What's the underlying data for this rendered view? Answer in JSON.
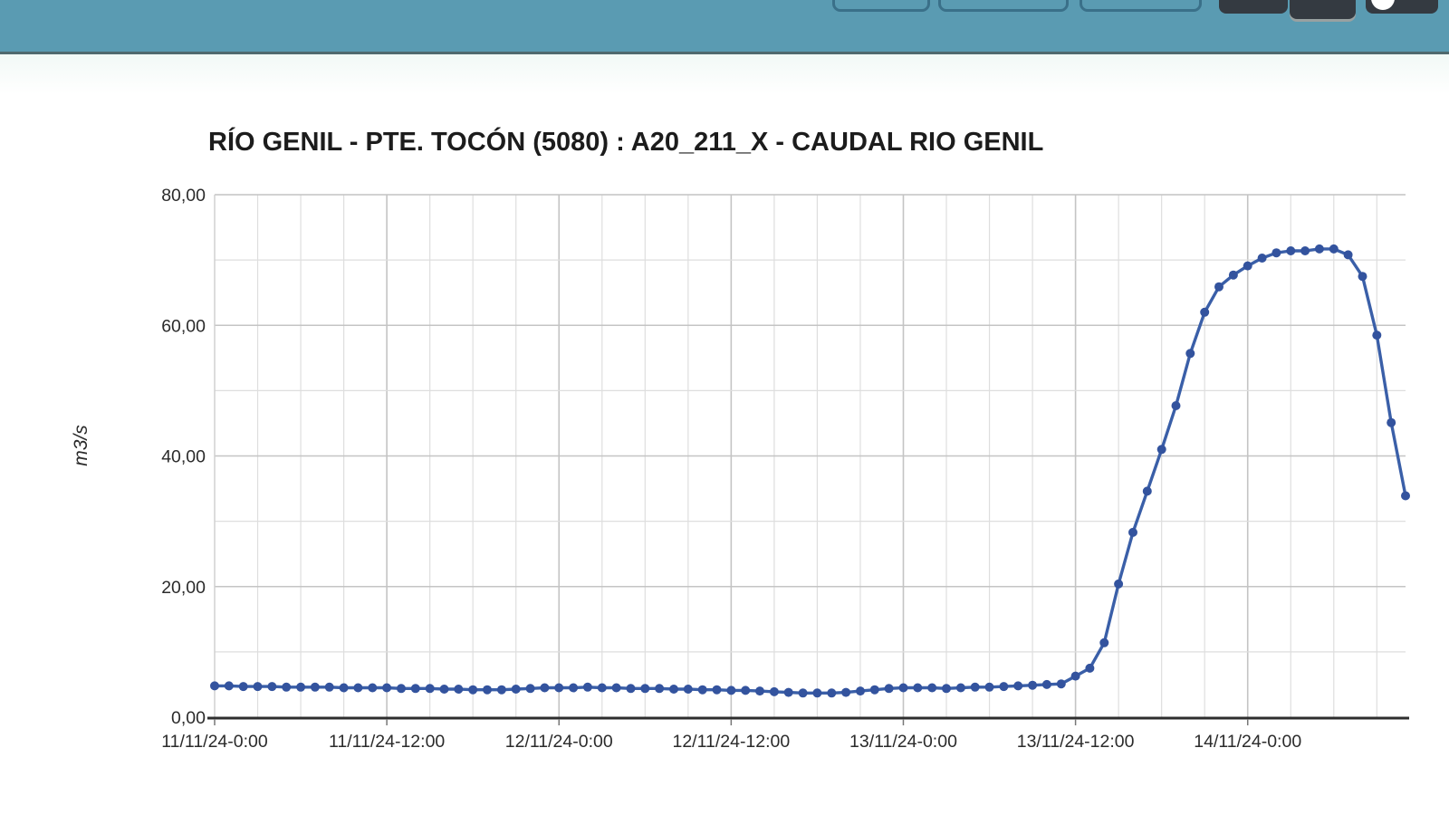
{
  "header": {
    "colors": {
      "bar_background": "#5a9bb2",
      "bar_border": "#50696e",
      "outline_button_border": "#3a7089",
      "dark_button_fill": "#343a41",
      "circle_icon_fill": "#ffffff"
    }
  },
  "chart_data": {
    "type": "line",
    "title": "RÍO GENIL - PTE. TOCÓN (5080) : A20_211_X - CAUDAL RIO GENIL",
    "xlabel": "",
    "ylabel": "m3/s",
    "ylim": [
      0,
      80
    ],
    "y_ticks": [
      "0,00",
      "20,00",
      "40,00",
      "60,00",
      "80,00"
    ],
    "x_tick_labels": [
      "11/11/24-0:00",
      "11/11/24-12:00",
      "12/11/24-0:00",
      "12/11/24-12:00",
      "13/11/24-0:00",
      "13/11/24-12:00",
      "14/11/24-0:00"
    ],
    "x_tick_hours": [
      0,
      12,
      24,
      36,
      48,
      60,
      72
    ],
    "minor_grid_step_hours": 3,
    "total_hours": 83,
    "grid": "on",
    "legend": "none",
    "colors": {
      "line": "#3a5fa8",
      "marker": "#33539e",
      "grid_minor": "#dedede",
      "grid_major": "#c4c4c4",
      "axis": "#2e2e2e",
      "tick_text": "#2b2b2b"
    },
    "series": [
      {
        "name": "CAUDAL RIO GENIL",
        "timestamps": [
          "11/11/24-0:00",
          "11/11/24-1:00",
          "11/11/24-2:00",
          "11/11/24-3:00",
          "11/11/24-4:00",
          "11/11/24-5:00",
          "11/11/24-6:00",
          "11/11/24-7:00",
          "11/11/24-8:00",
          "11/11/24-9:00",
          "11/11/24-10:00",
          "11/11/24-11:00",
          "11/11/24-12:00",
          "11/11/24-13:00",
          "11/11/24-14:00",
          "11/11/24-15:00",
          "11/11/24-16:00",
          "11/11/24-17:00",
          "11/11/24-18:00",
          "11/11/24-19:00",
          "11/11/24-20:00",
          "11/11/24-21:00",
          "11/11/24-22:00",
          "11/11/24-23:00",
          "12/11/24-0:00",
          "12/11/24-1:00",
          "12/11/24-2:00",
          "12/11/24-3:00",
          "12/11/24-4:00",
          "12/11/24-5:00",
          "12/11/24-6:00",
          "12/11/24-7:00",
          "12/11/24-8:00",
          "12/11/24-9:00",
          "12/11/24-10:00",
          "12/11/24-11:00",
          "12/11/24-12:00",
          "12/11/24-13:00",
          "12/11/24-14:00",
          "12/11/24-15:00",
          "12/11/24-16:00",
          "12/11/24-17:00",
          "12/11/24-18:00",
          "12/11/24-19:00",
          "12/11/24-20:00",
          "12/11/24-21:00",
          "12/11/24-22:00",
          "12/11/24-23:00",
          "13/11/24-0:00",
          "13/11/24-1:00",
          "13/11/24-2:00",
          "13/11/24-3:00",
          "13/11/24-4:00",
          "13/11/24-5:00",
          "13/11/24-6:00",
          "13/11/24-7:00",
          "13/11/24-8:00",
          "13/11/24-9:00",
          "13/11/24-10:00",
          "13/11/24-11:00",
          "13/11/24-12:00",
          "13/11/24-13:00",
          "13/11/24-14:00",
          "13/11/24-15:00",
          "13/11/24-16:00",
          "13/11/24-17:00",
          "13/11/24-18:00",
          "13/11/24-19:00",
          "13/11/24-20:00",
          "13/11/24-21:00",
          "13/11/24-22:00",
          "13/11/24-23:00",
          "14/11/24-0:00",
          "14/11/24-1:00",
          "14/11/24-2:00",
          "14/11/24-3:00",
          "14/11/24-4:00",
          "14/11/24-5:00",
          "14/11/24-6:00",
          "14/11/24-7:00",
          "14/11/24-8:00",
          "14/11/24-9:00",
          "14/11/24-10:00",
          "14/11/24-11:00"
        ],
        "values": [
          4.8,
          4.8,
          4.7,
          4.7,
          4.7,
          4.6,
          4.6,
          4.6,
          4.6,
          4.5,
          4.5,
          4.5,
          4.5,
          4.4,
          4.4,
          4.4,
          4.3,
          4.3,
          4.2,
          4.2,
          4.2,
          4.3,
          4.4,
          4.5,
          4.5,
          4.5,
          4.6,
          4.5,
          4.5,
          4.4,
          4.4,
          4.4,
          4.3,
          4.3,
          4.2,
          4.2,
          4.1,
          4.1,
          4.0,
          3.9,
          3.8,
          3.7,
          3.7,
          3.7,
          3.8,
          4.0,
          4.2,
          4.4,
          4.5,
          4.5,
          4.5,
          4.4,
          4.5,
          4.6,
          4.6,
          4.7,
          4.8,
          4.9,
          5.0,
          5.1,
          6.3,
          7.5,
          11.4,
          20.4,
          28.3,
          34.6,
          41.0,
          47.7,
          55.7,
          62.0,
          65.9,
          67.7,
          69.1,
          70.3,
          71.1,
          71.4,
          71.4,
          71.7,
          71.7,
          70.8,
          67.5,
          58.5,
          45.1,
          33.9
        ]
      }
    ]
  }
}
